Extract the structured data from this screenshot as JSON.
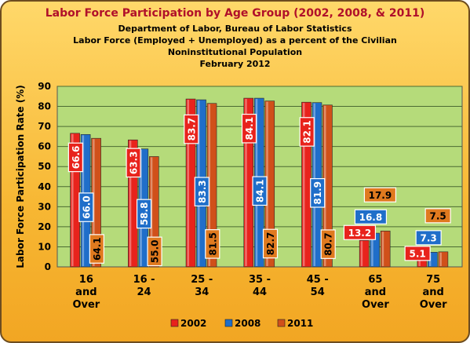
{
  "chart_data": {
    "type": "bar",
    "title": "Labor Force Participation by Age Group (2002, 2008, & 2011)",
    "subtitle_lines": [
      "Department of Labor, Bureau of Labor Statistics",
      "Labor Force (Employed + Unemployed) as a percent of the Civilian",
      "Noninstitutional Population",
      "February 2012"
    ],
    "ylabel": "Labor Force Participation Rate (%)",
    "xlabel": "",
    "ylim": [
      0,
      90
    ],
    "yticks": [
      "0",
      "10",
      "20",
      "30",
      "40",
      "50",
      "60",
      "70",
      "80",
      "90"
    ],
    "categories": [
      [
        "16",
        "and",
        "Over"
      ],
      [
        "16 -",
        "24"
      ],
      [
        "25 -",
        "34"
      ],
      [
        "35 -",
        "44"
      ],
      [
        "45 -",
        "54"
      ],
      [
        "65",
        "and",
        "Over"
      ],
      [
        "75",
        "and",
        "Over"
      ]
    ],
    "series": [
      {
        "name": "2002",
        "color": "#e8231c",
        "values": [
          66.6,
          63.3,
          83.7,
          84.1,
          82.1,
          13.2,
          5.1
        ],
        "labels": [
          "66.6",
          "63.3",
          "83.7",
          "84.1",
          "82.1",
          "13.2",
          "5.1"
        ]
      },
      {
        "name": "2008",
        "color": "#1f6ec9",
        "values": [
          66.0,
          58.8,
          83.3,
          84.1,
          81.9,
          16.8,
          7.3
        ],
        "labels": [
          "66.0",
          "58.8",
          "83.3",
          "84.1",
          "81.9",
          "16.8",
          "7.3"
        ]
      },
      {
        "name": "2011",
        "color": "#d0501a",
        "values": [
          64.1,
          55.0,
          81.5,
          82.7,
          80.7,
          17.9,
          7.5
        ],
        "labels": [
          "64.1",
          "55.0",
          "81.5",
          "82.7",
          "80.7",
          "17.9",
          "7.5"
        ]
      }
    ],
    "grid": true,
    "plot_background": "#b5db7a",
    "legend_position": "bottom"
  }
}
